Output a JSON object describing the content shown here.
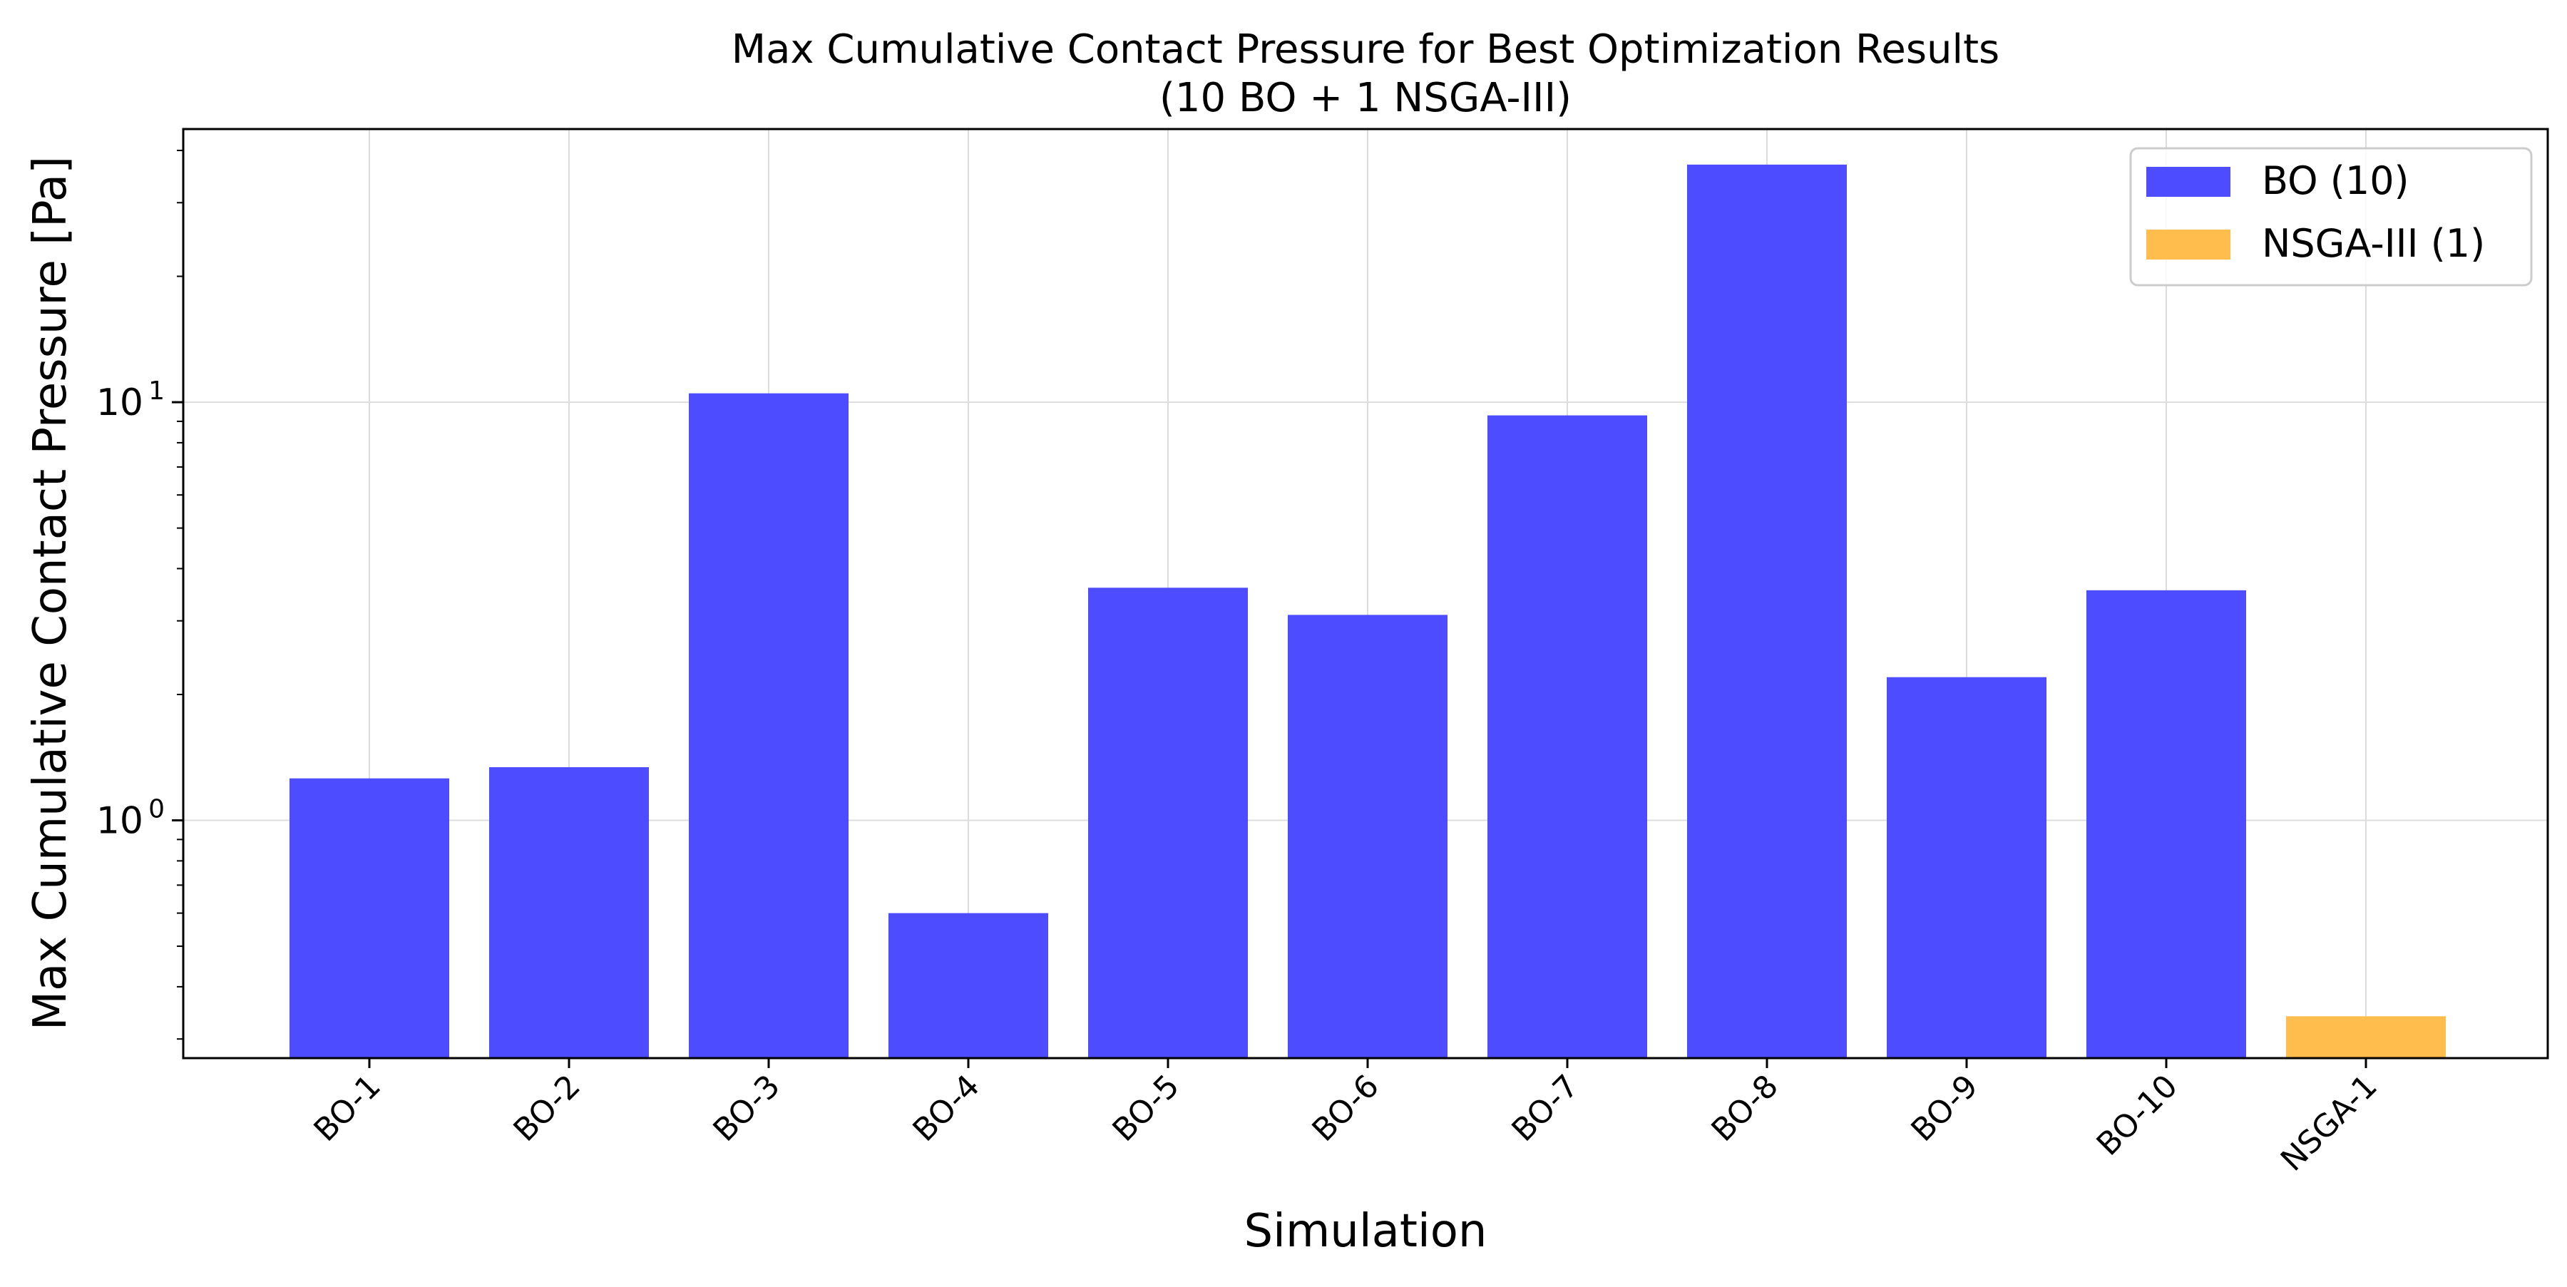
{
  "chart_data": {
    "type": "bar",
    "title": "Max Cumulative Contact Pressure for Best Optimization Results",
    "subtitle": "(10 BO + 1 NSGA-III)",
    "xlabel": "Simulation",
    "ylabel": "Max Cumulative Contact Pressure [Pa]",
    "yscale": "log",
    "ylim": [
      0.27,
      45
    ],
    "y_tick_labels": [
      {
        "base": "10",
        "exp": "1",
        "value": 10
      },
      {
        "base": "10",
        "exp": "0",
        "value": 1
      }
    ],
    "grid": true,
    "legend_position": "top-right",
    "categories": [
      "BO-1",
      "BO-2",
      "BO-3",
      "BO-4",
      "BO-5",
      "BO-6",
      "BO-7",
      "BO-8",
      "BO-9",
      "BO-10",
      "NSGA-1"
    ],
    "series": [
      {
        "name": "BO (10)",
        "color": "#4d4dff",
        "values": [
          1.26,
          1.34,
          10.5,
          0.6,
          3.6,
          3.1,
          9.3,
          37.0,
          2.2,
          3.55,
          null
        ]
      },
      {
        "name": "NSGA-III (1)",
        "color": "#ffbd4d",
        "values": [
          null,
          null,
          null,
          null,
          null,
          null,
          null,
          null,
          null,
          null,
          0.34
        ]
      }
    ]
  }
}
